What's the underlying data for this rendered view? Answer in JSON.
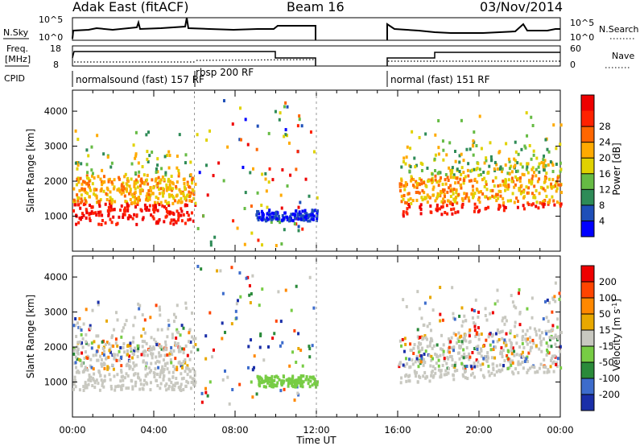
{
  "header": {
    "station": "Adak East (fitACF)",
    "beam": "Beam 16",
    "date": "03/Nov/2014"
  },
  "strip_labels": {
    "nsky": "N.Sky",
    "freq_line1": "Freq.",
    "freq_line2": "[MHz]",
    "cpid": "CPID",
    "nsearch": "N.Search",
    "nave": "Nave",
    "nsky_top": "10^5",
    "nsky_bottom": "10^0",
    "freq_top": "18",
    "freq_bottom": "8",
    "nave_top": "60",
    "nave_bottom": "0",
    "nsearch_top": "10^5",
    "nsearch_bottom": "10^0"
  },
  "cpid_segments": [
    {
      "label": "normalsound (fast) 157 RF",
      "start_hour": 0
    },
    {
      "label": "rbsp 200 RF",
      "start_hour": 6
    },
    {
      "label": "normal (fast) 151 RF",
      "start_hour": 16
    }
  ],
  "chart_data": [
    {
      "type": "heatmap",
      "panel": "power",
      "xlabel": "",
      "ylabel": "Slant Range [km]",
      "xlim": [
        0,
        24
      ],
      "ylim": [
        0,
        4600
      ],
      "y_ticks": [
        1000,
        2000,
        3000,
        4000
      ],
      "colorbar": {
        "label": "Power [dB]",
        "ticks": [
          "4",
          "8",
          "12",
          "16",
          "20",
          "24",
          "28"
        ],
        "colors": [
          "#0000ff",
          "#1f4fb8",
          "#2e8b57",
          "#66bb44",
          "#e0d200",
          "#ffaa00",
          "#ff6600",
          "#ff2200",
          "#ee0000"
        ]
      },
      "data_gap_hours": [
        12,
        15.9
      ]
    },
    {
      "type": "heatmap",
      "panel": "velocity",
      "xlabel": "Time UT",
      "ylabel": "Slant Range [km]",
      "xlim": [
        0,
        24
      ],
      "ylim": [
        0,
        4600
      ],
      "y_ticks": [
        1000,
        2000,
        3000,
        4000
      ],
      "x_ticks": [
        "00:00",
        "04:00",
        "08:00",
        "12:00",
        "16:00",
        "20:00",
        "00:00"
      ],
      "colorbar": {
        "label": "Velocity [m s^-1]",
        "ticks": [
          "200",
          "100",
          "50",
          "15",
          "-15",
          "-50",
          "-100",
          "-200"
        ],
        "colors": [
          "#1a2fa8",
          "#3d6ccc",
          "#2a8a3a",
          "#77cc44",
          "#c8c8c0",
          "#e8a800",
          "#ff8800",
          "#ff4400",
          "#ee0000"
        ]
      },
      "data_gap_hours": [
        12,
        15.9
      ]
    }
  ]
}
